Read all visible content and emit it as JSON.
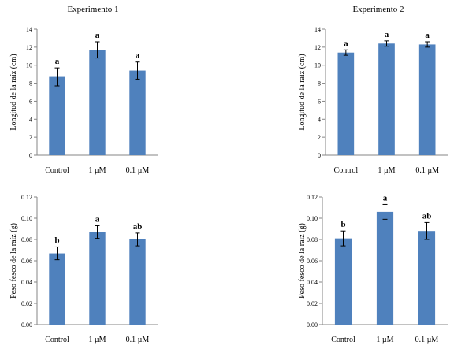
{
  "figure": {
    "panel_titles": [
      "Experimento 1",
      "Experimento 2"
    ]
  },
  "chart_data": [
    {
      "type": "bar",
      "title": "Experimento 1",
      "ylabel": "Longitud de la raíz (cm)",
      "xlabel": "",
      "categories": [
        "Control",
        "1 µM",
        "0.1 µM"
      ],
      "values": [
        8.7,
        11.7,
        9.4
      ],
      "errors": [
        1.0,
        0.9,
        0.95
      ],
      "letters": [
        "a",
        "a",
        "a"
      ],
      "ylim": [
        0,
        14
      ],
      "yticks": [
        0,
        2,
        4,
        6,
        8,
        10,
        12,
        14
      ],
      "ytick_labels": [
        "0",
        "2",
        "4",
        "6",
        "8",
        "10",
        "12",
        "14"
      ],
      "bar_color": "#4f81bd"
    },
    {
      "type": "bar",
      "title": "Experimento 2",
      "ylabel": "Longitud de la raíz (cm)",
      "xlabel": "",
      "categories": [
        "Control",
        "1 µM",
        "0.1 µM"
      ],
      "values": [
        11.4,
        12.4,
        12.3
      ],
      "errors": [
        0.3,
        0.3,
        0.3
      ],
      "letters": [
        "a",
        "a",
        "a"
      ],
      "ylim": [
        0,
        14
      ],
      "yticks": [
        0,
        2,
        4,
        6,
        8,
        10,
        12,
        14
      ],
      "ytick_labels": [
        "0",
        "2",
        "4",
        "6",
        "8",
        "10",
        "12",
        "14"
      ],
      "bar_color": "#4f81bd"
    },
    {
      "type": "bar",
      "title": "",
      "ylabel": "Peso fesco de la raíz (g)",
      "xlabel": "",
      "categories": [
        "Control",
        "1 µM",
        "0.1 µM"
      ],
      "values": [
        0.067,
        0.087,
        0.08
      ],
      "errors": [
        0.006,
        0.006,
        0.006
      ],
      "letters": [
        "b",
        "a",
        "ab"
      ],
      "ylim": [
        0,
        0.12
      ],
      "yticks": [
        0,
        0.02,
        0.04,
        0.06,
        0.08,
        0.1,
        0.12
      ],
      "ytick_labels": [
        "0.00",
        "0.02",
        "0.04",
        "0.06",
        "0.08",
        "0.10",
        "0.12"
      ],
      "bar_color": "#4f81bd"
    },
    {
      "type": "bar",
      "title": "",
      "ylabel": "Peso fesco de la raíz (g)",
      "xlabel": "",
      "categories": [
        "Control",
        "1 µM",
        "0.1 µM"
      ],
      "values": [
        0.081,
        0.106,
        0.088
      ],
      "errors": [
        0.007,
        0.007,
        0.008
      ],
      "letters": [
        "b",
        "a",
        "ab"
      ],
      "ylim": [
        0,
        0.12
      ],
      "yticks": [
        0,
        0.02,
        0.04,
        0.06,
        0.08,
        0.1,
        0.12
      ],
      "ytick_labels": [
        "0.00",
        "0.02",
        "0.04",
        "0.06",
        "0.08",
        "0.10",
        "0.12"
      ],
      "bar_color": "#4f81bd"
    }
  ]
}
